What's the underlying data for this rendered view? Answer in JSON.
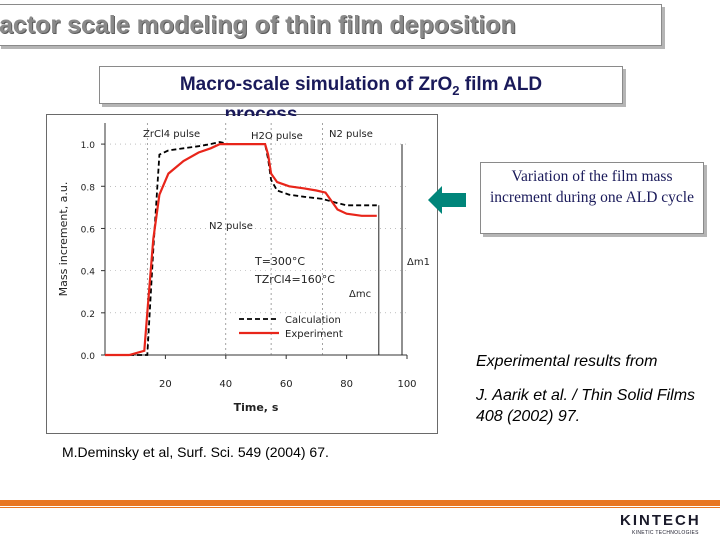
{
  "header": {
    "title": "actor scale modeling of thin film deposition"
  },
  "subtitle": {
    "line1_main": "Macro-scale simulation of ZrO",
    "line1_sub": "2",
    "line1_end": " film ALD",
    "line2": "process"
  },
  "callout": {
    "text": "Variation of the film mass increment during one ALD cycle",
    "arrow_color": "#00857a"
  },
  "reference": {
    "line1": "Experimental results from",
    "line2": "J. Aarik et al. / Thin Solid Films 408 (2002) 97."
  },
  "citation": "M.Deminsky et al, Surf. Sci. 549 (2004) 67.",
  "logo": {
    "name": "KINTECH",
    "tagline": "KINETIC TECHNOLOGIES"
  },
  "chart_data": {
    "type": "line",
    "xlabel": "Time, s",
    "ylabel": "Mass increment, a.u.",
    "x_ticks": [
      "20",
      "40",
      "60",
      "80",
      "100"
    ],
    "y_ticks": [
      "0.0",
      "0.2",
      "0.4",
      "0.6",
      "0.8",
      "1.0"
    ],
    "xlim": [
      0,
      100
    ],
    "ylim": [
      0,
      1.1
    ],
    "pulse_labels": [
      "ZrCl4 pulse",
      "H2O pulse",
      "N2 pulse",
      "N2 pulse"
    ],
    "conditions": [
      "T=300°C",
      "TZrCl4=160°C"
    ],
    "annotations": [
      "Δm1",
      "Δmc"
    ],
    "legend_position": "bottom-center",
    "series": [
      {
        "name": "Calculation",
        "style": "dashed",
        "color": "#000000",
        "x": [
          0,
          8,
          14,
          16,
          18,
          21,
          26,
          31,
          35,
          38,
          41,
          45,
          50,
          53,
          54,
          55,
          57,
          61,
          66,
          72,
          77,
          80,
          85,
          90
        ],
        "y": [
          0.0,
          0.0,
          0.0,
          0.5,
          0.95,
          0.97,
          0.98,
          0.99,
          1.0,
          1.01,
          1.0,
          1.0,
          1.0,
          1.0,
          0.93,
          0.83,
          0.78,
          0.76,
          0.75,
          0.74,
          0.72,
          0.71,
          0.71,
          0.71
        ]
      },
      {
        "name": "Experiment",
        "color": "#e8251a",
        "x": [
          0,
          8,
          13,
          14,
          16,
          18,
          21,
          26,
          31,
          35,
          38,
          41,
          45,
          50,
          53,
          54,
          55,
          57,
          61,
          66,
          70,
          73,
          77,
          80,
          85,
          90
        ],
        "y": [
          0.0,
          0.0,
          0.02,
          0.2,
          0.55,
          0.76,
          0.86,
          0.92,
          0.96,
          0.98,
          1.0,
          1.0,
          1.0,
          1.0,
          1.0,
          0.95,
          0.86,
          0.82,
          0.8,
          0.79,
          0.78,
          0.77,
          0.69,
          0.67,
          0.66,
          0.66
        ]
      }
    ]
  }
}
